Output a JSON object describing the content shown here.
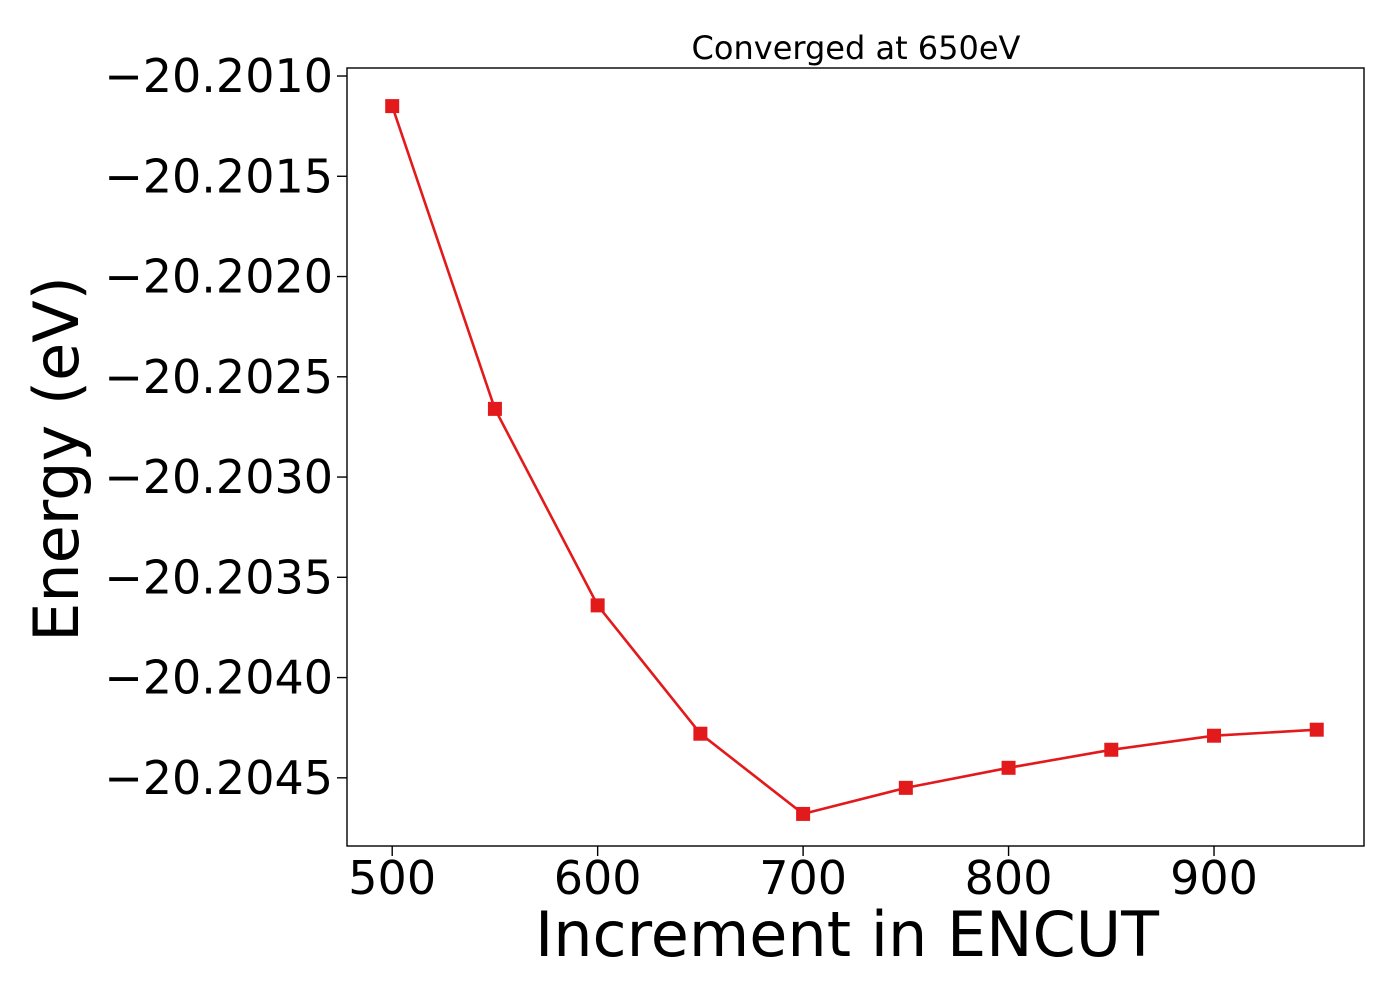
{
  "chart_data": {
    "type": "line",
    "title": "Converged at 650eV",
    "xlabel": "Increment in ENCUT",
    "ylabel": "Energy (eV)",
    "xlim": [
      478,
      973
    ],
    "ylim": [
      -20.20484,
      -20.20096
    ],
    "x_ticks": [
      500,
      600,
      700,
      800,
      900
    ],
    "x_tick_labels": [
      "500",
      "600",
      "700",
      "800",
      "900"
    ],
    "y_ticks": [
      -20.201,
      -20.2015,
      -20.202,
      -20.2025,
      -20.203,
      -20.2035,
      -20.204,
      -20.2045
    ],
    "y_tick_labels": [
      "−20.2010",
      "−20.2015",
      "−20.2020",
      "−20.2025",
      "−20.2030",
      "−20.2035",
      "−20.2040",
      "−20.2045"
    ],
    "grid": false,
    "legend": "none",
    "series": [
      {
        "color": "#e31a1c",
        "marker": "square",
        "x": [
          500,
          550,
          600,
          650,
          700,
          750,
          800,
          850,
          900,
          950
        ],
        "y": [
          -20.20115,
          -20.20266,
          -20.20364,
          -20.20428,
          -20.20468,
          -20.20455,
          -20.20445,
          -20.20436,
          -20.20429,
          -20.20426
        ]
      }
    ]
  }
}
